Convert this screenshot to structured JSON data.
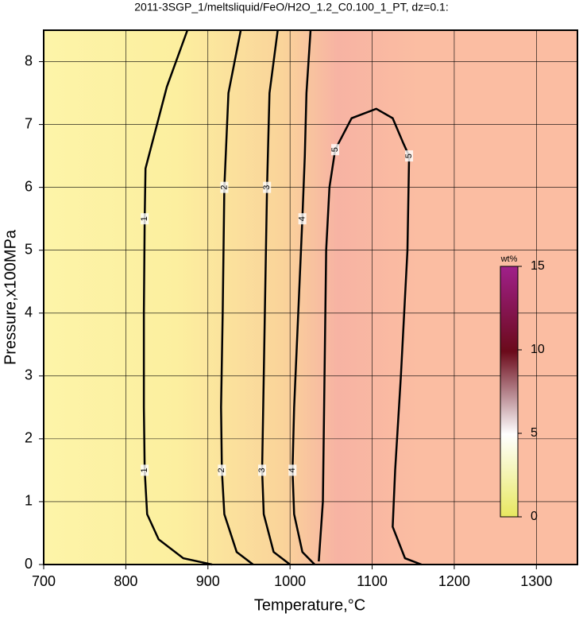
{
  "chart_data": {
    "type": "contour",
    "title": "2011-3SGP_1/meltsliquid/FeO/H2O_1.2_C0.100_1_PT, dz=0.1:",
    "x_label": "Temperature,°C",
    "y_label": "Pressure,x100MPa",
    "xlim": [
      700,
      1350
    ],
    "ylim": [
      0,
      8.5
    ],
    "xticks": [
      700,
      800,
      900,
      1000,
      1100,
      1200,
      1300
    ],
    "yticks": [
      0,
      1,
      2,
      3,
      4,
      5,
      6,
      7,
      8
    ],
    "grid": true,
    "contours": [
      {
        "level": 1,
        "x": [
          875,
          850,
          824,
          823,
          822,
          822,
          823,
          826,
          840,
          870,
          905
        ],
        "y": [
          8.5,
          7.6,
          6.3,
          5.5,
          4,
          2.5,
          1.5,
          0.8,
          0.4,
          0.1,
          0
        ]
      },
      {
        "level": 2,
        "x": [
          940,
          925,
          920,
          918,
          916,
          917,
          920,
          935,
          955
        ],
        "y": [
          8.5,
          7.5,
          6,
          4,
          2.5,
          1.5,
          0.8,
          0.2,
          0
        ]
      },
      {
        "level": 3,
        "x": [
          985,
          975,
          972,
          970,
          968,
          966,
          968,
          980,
          1000
        ],
        "y": [
          8.5,
          7.5,
          6,
          4.5,
          3,
          1.5,
          0.8,
          0.2,
          0
        ]
      },
      {
        "level": 4,
        "x": [
          1025,
          1020,
          1018,
          1015,
          1010,
          1005,
          1003,
          1005,
          1015,
          1030
        ],
        "y": [
          8.5,
          7.5,
          6.5,
          5.5,
          4,
          2.5,
          1.5,
          0.8,
          0.2,
          0
        ]
      },
      {
        "level": 5,
        "x": [
          1035,
          1040,
          1042,
          1044,
          1048,
          1055,
          1075,
          1105,
          1125,
          1138,
          1145,
          1143,
          1135,
          1128,
          1125,
          1140,
          1160
        ],
        "y": [
          0.05,
          1,
          3,
          5,
          6,
          6.6,
          7.1,
          7.25,
          7.1,
          6.7,
          6.5,
          5,
          3,
          1.5,
          0.6,
          0.1,
          0
        ]
      }
    ],
    "colorbar": {
      "title": "wt%",
      "lim": [
        0,
        15
      ],
      "ticks": [
        0,
        5,
        10,
        15
      ]
    }
  }
}
